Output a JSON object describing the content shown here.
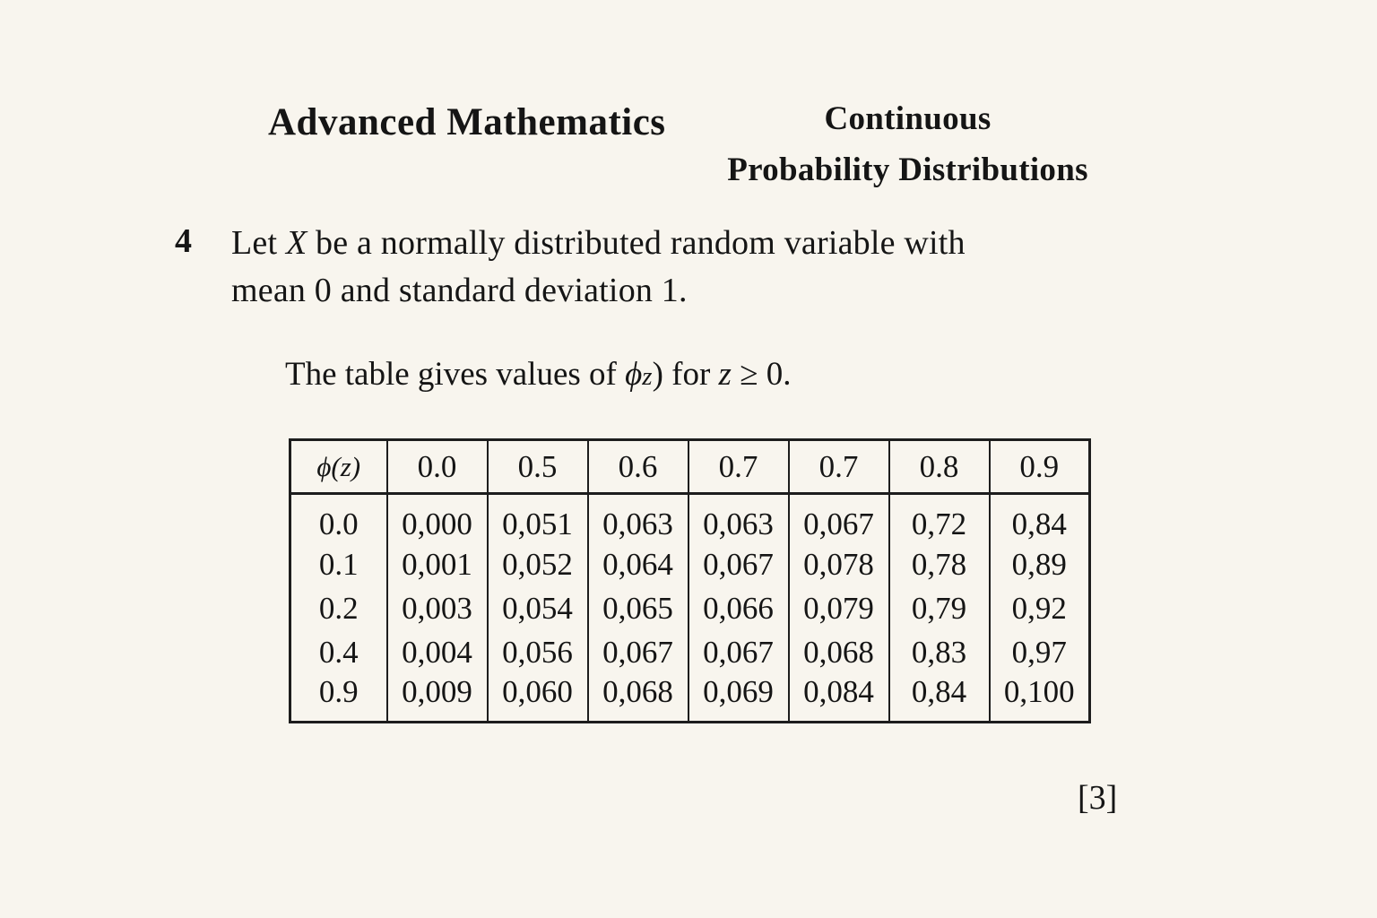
{
  "header": {
    "course_title": "Advanced Mathematics",
    "topic_line1": "Continuous",
    "topic_line2": "Probability Distributions"
  },
  "question": {
    "number": "4",
    "line1_pre": "Let ",
    "line1_var": "X",
    "line1_post": " be a normally distributed random variable with",
    "line2": "mean 0 and standard deviation 1."
  },
  "intro": {
    "pre": "The table gives values of ",
    "phi": "ϕ",
    "z_sub": "z",
    "mid": ") for ",
    "z_var": "z",
    "tail": " ≥ 0."
  },
  "table": {
    "header": [
      "ϕ(z)",
      "0.0",
      "0.5",
      "0.6",
      "0.7",
      "0.7",
      "0.8",
      "0.9"
    ],
    "rows": [
      [
        "0.0",
        "0,000",
        "0,051",
        "0,063",
        "0,063",
        "0,067",
        "0,72",
        "0,84"
      ],
      [
        "0.1",
        "0,001",
        "0,052",
        "0,064",
        "0,067",
        "0,078",
        "0,78",
        "0,89"
      ],
      [
        "0.2",
        "0,003",
        "0,054",
        "0,065",
        "0,066",
        "0,079",
        "0,79",
        "0,92"
      ],
      [
        "0.4",
        "0,004",
        "0,056",
        "0,067",
        "0,067",
        "0,068",
        "0,83",
        "0,97"
      ],
      [
        "0.9",
        "0,009",
        "0,060",
        "0,068",
        "0,069",
        "0,084",
        "0,84",
        "0,100"
      ]
    ]
  },
  "marks_label": "[3]"
}
